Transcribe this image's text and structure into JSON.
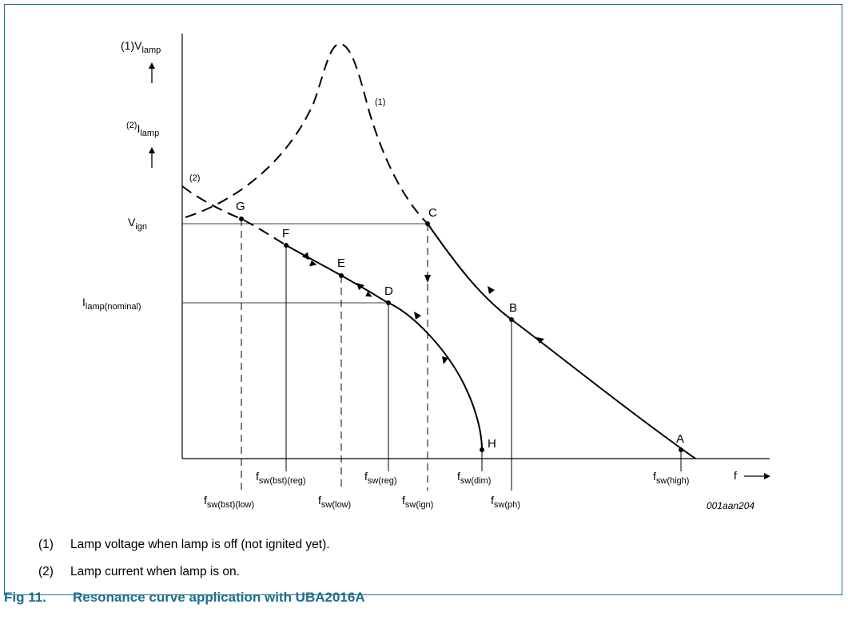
{
  "figure": {
    "number": "Fig 11.",
    "title": "Resonance curve application with UBA2016A",
    "reference": "001aan204",
    "colors": {
      "frame": "#1e6e8c",
      "caption": "#1e6e8c",
      "lines": "#000000"
    }
  },
  "axes": {
    "y1": {
      "base": "(1)V",
      "sub": "lamp"
    },
    "y2": {
      "sup": "(2)",
      "base": "I",
      "sub": "lamp"
    },
    "x": {
      "base": "f"
    }
  },
  "levels": {
    "v_ign": {
      "base": "V",
      "sub": "ign"
    },
    "i_nominal": {
      "base": "I",
      "sub": "lamp(nominal)"
    }
  },
  "curve_labels": {
    "c1": "(1)",
    "c2": "(2)"
  },
  "points": [
    "A",
    "B",
    "C",
    "D",
    "E",
    "F",
    "G",
    "H"
  ],
  "freq_labels": {
    "bst_low": {
      "base": "f",
      "sub": "sw(bst)(low)"
    },
    "bst_reg": {
      "base": "f",
      "sub": "sw(bst)(reg)"
    },
    "low": {
      "base": "f",
      "sub": "sw(low)"
    },
    "reg": {
      "base": "f",
      "sub": "sw(reg)"
    },
    "ign": {
      "base": "f",
      "sub": "sw(ign)"
    },
    "dim": {
      "base": "f",
      "sub": "sw(dim)"
    },
    "ph": {
      "base": "f",
      "sub": "sw(ph)"
    },
    "high": {
      "base": "f",
      "sub": "sw(high)"
    }
  },
  "notes": [
    {
      "num": "(1)",
      "text": "Lamp voltage when lamp is off (not ignited yet)."
    },
    {
      "num": "(2)",
      "text": "Lamp current when lamp is on."
    }
  ]
}
